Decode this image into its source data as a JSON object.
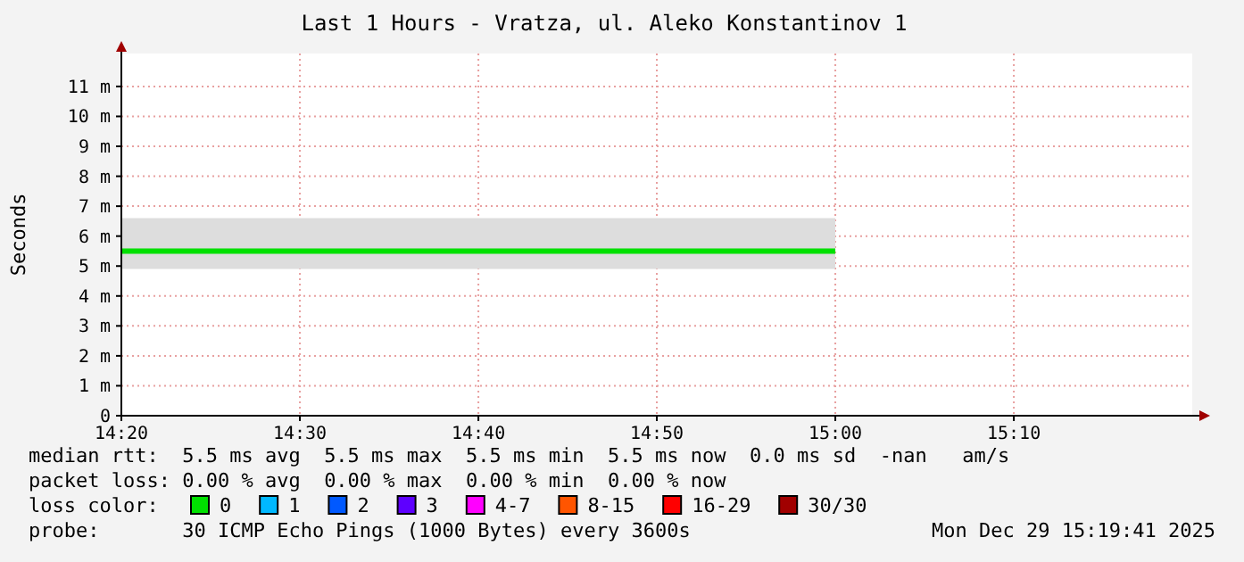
{
  "chart_data": {
    "type": "line",
    "title": "Last 1 Hours - Vratza, ul. Aleko Konstantinov 1",
    "ylabel": "Seconds",
    "x": [
      14.3333,
      15.0
    ],
    "series": [
      {
        "name": "0",
        "color": "#00e000",
        "values": [
          5.5,
          5.5
        ],
        "lower": [
          4.9,
          4.9
        ],
        "upper": [
          6.6,
          6.6
        ]
      }
    ],
    "xlim": [
      14.3333,
      15.3333
    ],
    "xticks": [
      {
        "value": 14.3333,
        "label": "14:20"
      },
      {
        "value": 14.5,
        "label": "14:30"
      },
      {
        "value": 14.6667,
        "label": "14:40"
      },
      {
        "value": 14.8333,
        "label": "14:50"
      },
      {
        "value": 15.0,
        "label": "15:00"
      },
      {
        "value": 15.1667,
        "label": "15:10"
      }
    ],
    "ylim": [
      0,
      12.1
    ],
    "yticks": [
      0,
      {
        "value": 1,
        "label": "1 m"
      },
      {
        "value": 2,
        "label": "2 m"
      },
      {
        "value": 3,
        "label": "3 m"
      },
      {
        "value": 4,
        "label": "4 m"
      },
      {
        "value": 5,
        "label": "5 m"
      },
      {
        "value": 6,
        "label": "6 m"
      },
      {
        "value": 7,
        "label": "7 m"
      },
      {
        "value": 8,
        "label": "8 m"
      },
      {
        "value": 9,
        "label": "9 m"
      },
      {
        "value": 10,
        "label": "10 m"
      },
      {
        "value": 11,
        "label": "11 m"
      }
    ],
    "grid": true,
    "legend": "bottom",
    "marker": "none",
    "line_style": "solid",
    "annotations": [
      "median rtt:  5.5 ms avg  5.5 ms max  5.5 ms min  5.5 ms now  0.0 ms sd  -nan   am/s",
      "packet loss: 0.00 % avg  0.00 % max  0.00 % min  0.00 % now",
      "loss color:",
      "1",
      "2",
      "3",
      "4-7",
      "8-15",
      "16-29",
      "30/30",
      "probe:       30 ICMP Echo Pings (1000 Bytes) every 3600s",
      "Mon Dec 29 15:19:41 2025"
    ]
  }
}
